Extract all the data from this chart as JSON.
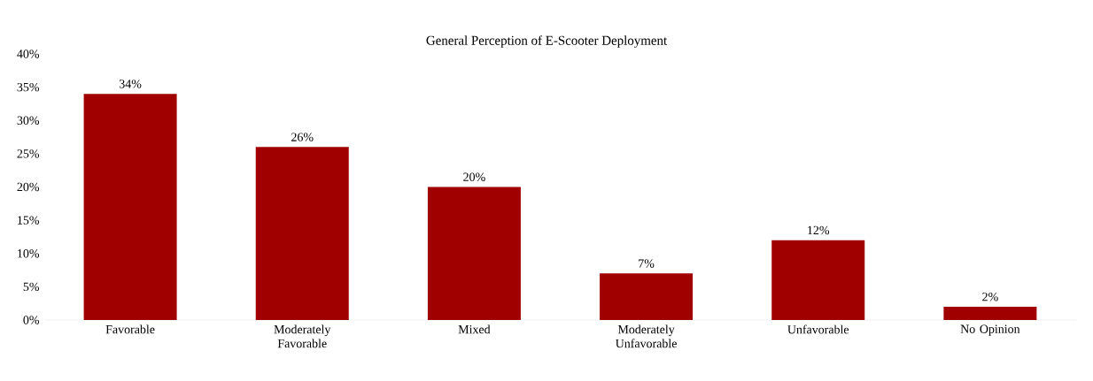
{
  "chart_data": {
    "type": "bar",
    "title": "General Perception of E-Scooter Deployment",
    "categories": [
      "Favorable",
      "Moderately Favorable",
      "Mixed",
      "Moderately Unfavorable",
      "Unfavorable",
      "No Opinion"
    ],
    "values": [
      34,
      26,
      20,
      7,
      12,
      2
    ],
    "value_labels": [
      "34%",
      "26%",
      "20%",
      "7%",
      "12%",
      "2%"
    ],
    "color": "#a00000",
    "ylim": [
      0,
      40
    ],
    "yticks": [
      {
        "value": 0,
        "label": "0%"
      },
      {
        "value": 5,
        "label": "5%"
      },
      {
        "value": 10,
        "label": "10%"
      },
      {
        "value": 15,
        "label": "15%"
      },
      {
        "value": 20,
        "label": "20%"
      },
      {
        "value": 25,
        "label": "25%"
      },
      {
        "value": 30,
        "label": "30%"
      },
      {
        "value": 35,
        "label": "35%"
      },
      {
        "value": 40,
        "label": "40%"
      }
    ]
  }
}
